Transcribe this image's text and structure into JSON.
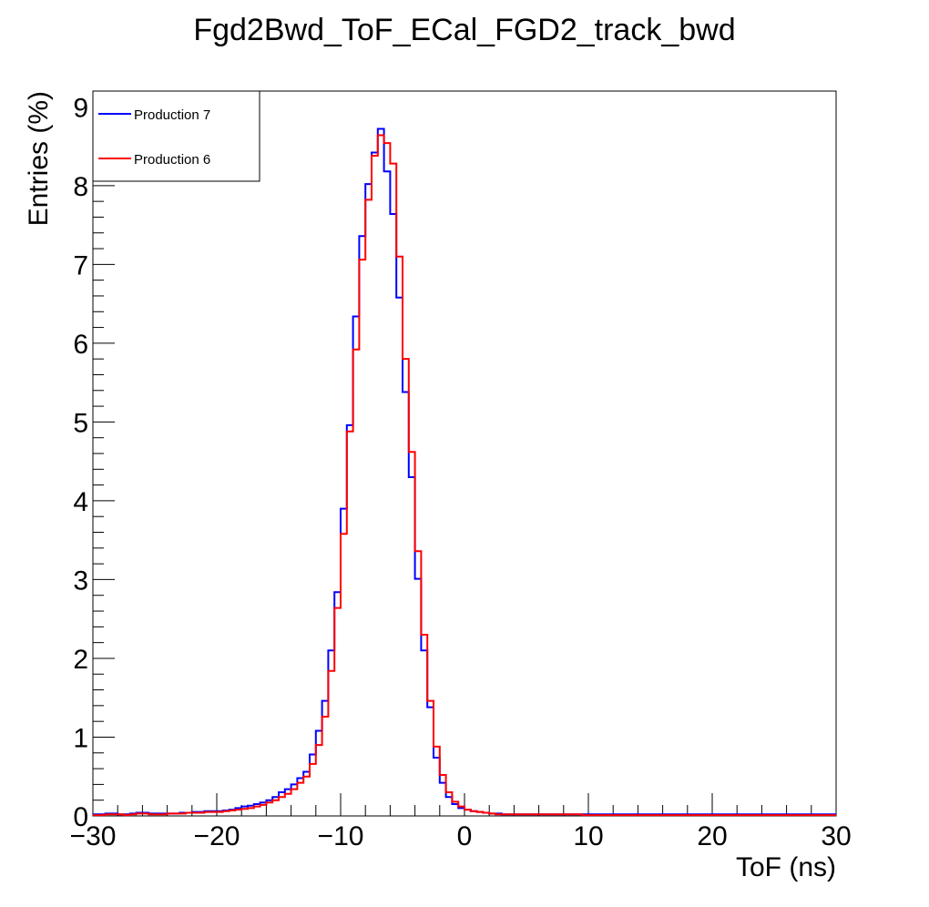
{
  "chart_data": {
    "type": "line",
    "title": "Fgd2Bwd_ToF_ECal_FGD2_track_bwd",
    "xlabel": "ToF (ns)",
    "ylabel": "Entries (%)",
    "xlim": [
      -30,
      30
    ],
    "ylim": [
      0,
      9.2
    ],
    "x_ticks": [
      -30,
      -20,
      -10,
      0,
      10,
      20,
      30
    ],
    "x_tick_labels": [
      "−30",
      "−20",
      "−10",
      "0",
      "10",
      "20",
      "30"
    ],
    "y_ticks": [
      0,
      1,
      2,
      3,
      4,
      5,
      6,
      7,
      8,
      9
    ],
    "y_tick_labels": [
      "0",
      "1",
      "2",
      "3",
      "4",
      "5",
      "6",
      "7",
      "8",
      "9"
    ],
    "grid": false,
    "legend_position": "top-left",
    "bin_width": 0.5,
    "bin_start": -30,
    "series": [
      {
        "name": "Production 7",
        "color": "#0000ff",
        "values": [
          0.02,
          0.02,
          0.03,
          0.03,
          0.02,
          0.02,
          0.03,
          0.04,
          0.04,
          0.03,
          0.03,
          0.03,
          0.03,
          0.03,
          0.04,
          0.04,
          0.05,
          0.05,
          0.06,
          0.06,
          0.06,
          0.07,
          0.08,
          0.1,
          0.12,
          0.13,
          0.15,
          0.17,
          0.2,
          0.24,
          0.3,
          0.34,
          0.4,
          0.48,
          0.56,
          0.78,
          1.08,
          1.46,
          2.1,
          2.84,
          3.9,
          4.96,
          6.34,
          7.36,
          8.02,
          8.42,
          8.72,
          8.18,
          7.64,
          6.58,
          5.38,
          4.3,
          3.01,
          2.1,
          1.38,
          0.74,
          0.42,
          0.24,
          0.15,
          0.1,
          0.08,
          0.06,
          0.05,
          0.04,
          0.03,
          0.03,
          0.02,
          0.02,
          0.02,
          0.02,
          0.02,
          0.02,
          0.02,
          0.02,
          0.02,
          0.02,
          0.02,
          0.02,
          0.02,
          0.02,
          0.02,
          0.02,
          0.02,
          0.02,
          0.02,
          0.02,
          0.02,
          0.02,
          0.02,
          0.02,
          0.02,
          0.02,
          0.02,
          0.02,
          0.02,
          0.02,
          0.02,
          0.02,
          0.02,
          0.02,
          0.02,
          0.02,
          0.02,
          0.02,
          0.02,
          0.02,
          0.02,
          0.02,
          0.02,
          0.02,
          0.02,
          0.02,
          0.02,
          0.02,
          0.02,
          0.02,
          0.02,
          0.02,
          0.02,
          0.02
        ]
      },
      {
        "name": "Production 6",
        "color": "#ff0000",
        "values": [
          0.01,
          0.01,
          0.02,
          0.02,
          0.02,
          0.01,
          0.02,
          0.03,
          0.03,
          0.02,
          0.02,
          0.02,
          0.03,
          0.03,
          0.03,
          0.04,
          0.04,
          0.04,
          0.05,
          0.05,
          0.05,
          0.06,
          0.07,
          0.08,
          0.09,
          0.1,
          0.12,
          0.14,
          0.17,
          0.2,
          0.24,
          0.28,
          0.34,
          0.42,
          0.5,
          0.66,
          0.9,
          1.26,
          1.84,
          2.64,
          3.58,
          4.88,
          5.92,
          7.06,
          7.82,
          8.38,
          8.64,
          8.54,
          8.28,
          7.1,
          5.8,
          4.62,
          3.36,
          2.3,
          1.46,
          0.88,
          0.52,
          0.3,
          0.18,
          0.12,
          0.08,
          0.06,
          0.05,
          0.04,
          0.03,
          0.02,
          0.02,
          0.02,
          0.02,
          0.02,
          0.02,
          0.02,
          0.02,
          0.02,
          0.02,
          0.02,
          0.02,
          0.02,
          0.02,
          0.01,
          0.01,
          0.01,
          0.01,
          0.01,
          0.01,
          0.01,
          0.01,
          0.01,
          0.01,
          0.01,
          0.01,
          0.01,
          0.01,
          0.01,
          0.01,
          0.01,
          0.01,
          0.01,
          0.01,
          0.01,
          0.01,
          0.01,
          0.01,
          0.01,
          0.01,
          0.01,
          0.01,
          0.01,
          0.01,
          0.01,
          0.01,
          0.01,
          0.01,
          0.01,
          0.01,
          0.01,
          0.01,
          0.01,
          0.01,
          0.01
        ]
      }
    ]
  }
}
